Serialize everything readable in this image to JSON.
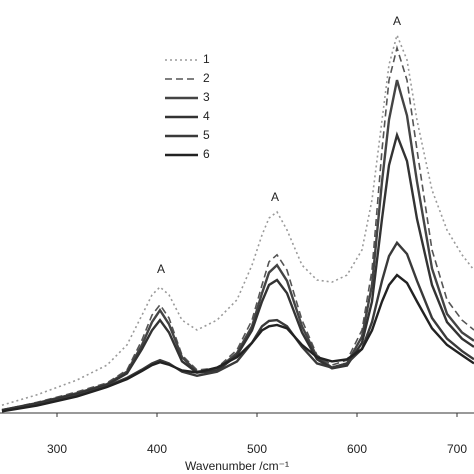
{
  "chart_data": {
    "type": "line",
    "x_label": "Wavenumber /cm⁻¹",
    "x": [
      245,
      280,
      320,
      350,
      370,
      385,
      395,
      403,
      412,
      425,
      440,
      460,
      480,
      495,
      505,
      512,
      520,
      530,
      545,
      560,
      575,
      590,
      605,
      615,
      625,
      632,
      640,
      650,
      660,
      675,
      690,
      705,
      717
    ],
    "xlim": [
      243,
      717
    ],
    "xticks": [
      300,
      400,
      500,
      600,
      700
    ],
    "ylim": [
      0,
      100
    ],
    "annotations": [
      "A",
      "A",
      "A"
    ],
    "series": [
      {
        "name": "1",
        "color": "#9a9a9a",
        "style": "dotted",
        "values": [
          1.9,
          4.4,
          8.0,
          11.6,
          16.5,
          23.7,
          28.6,
          30.5,
          28.6,
          22.5,
          20.1,
          22.5,
          27.4,
          35.8,
          43.1,
          47.2,
          48.7,
          44.3,
          35.8,
          32.2,
          31.7,
          33.4,
          39.5,
          51.6,
          70.9,
          84.3,
          91.5,
          85.5,
          70.9,
          54.0,
          44.3,
          38.3,
          34.6
        ]
      },
      {
        "name": "2",
        "color": "#555555",
        "style": "dashed",
        "values": [
          0.7,
          2.6,
          5.1,
          7.3,
          10.4,
          17.7,
          23.7,
          26.2,
          23.0,
          14.0,
          10.4,
          10.9,
          15.3,
          22.5,
          31.0,
          36.6,
          38.3,
          34.6,
          22.5,
          14.0,
          11.6,
          12.8,
          20.1,
          34.6,
          63.7,
          80.6,
          88.4,
          80.6,
          63.7,
          39.5,
          27.4,
          22.5,
          20.1
        ]
      },
      {
        "name": "3",
        "color": "#444444",
        "style": "solid",
        "values": [
          0.7,
          2.4,
          4.8,
          7.0,
          10.0,
          16.5,
          22.0,
          24.9,
          21.5,
          13.5,
          10.0,
          10.5,
          14.5,
          21.0,
          29.0,
          34.0,
          35.8,
          32.0,
          21.0,
          13.5,
          11.0,
          12.0,
          18.5,
          31.0,
          56.0,
          71.0,
          80.6,
          72.0,
          56.0,
          35.0,
          24.0,
          19.5,
          17.5
        ]
      },
      {
        "name": "4",
        "color": "#333333",
        "style": "solid",
        "values": [
          0.7,
          2.3,
          4.6,
          6.8,
          9.6,
          15.5,
          20.0,
          22.5,
          19.5,
          12.5,
          9.8,
          10.2,
          14.0,
          20.0,
          27.0,
          31.0,
          32.2,
          29.0,
          19.5,
          13.0,
          10.8,
          11.5,
          17.0,
          27.0,
          47.0,
          60.0,
          67.3,
          61.0,
          47.0,
          31.0,
          22.0,
          18.0,
          16.0
        ]
      },
      {
        "name": "5",
        "color": "#3a3a3a",
        "style": "solid",
        "values": [
          0.5,
          2.0,
          4.2,
          6.5,
          8.5,
          10.5,
          12.0,
          12.8,
          12.0,
          10.0,
          9.0,
          10.0,
          12.5,
          17.0,
          21.0,
          22.3,
          22.5,
          21.0,
          16.0,
          12.0,
          11.0,
          12.0,
          15.5,
          22.0,
          32.0,
          38.0,
          41.2,
          38.5,
          32.0,
          23.0,
          18.0,
          15.0,
          13.0
        ]
      },
      {
        "name": "6",
        "color": "#222222",
        "style": "solid",
        "values": [
          0.4,
          1.8,
          4.0,
          6.3,
          8.2,
          10.2,
          11.6,
          12.3,
          11.7,
          10.3,
          9.8,
          11.0,
          13.5,
          17.0,
          20.0,
          21.0,
          21.3,
          20.5,
          16.5,
          13.5,
          12.5,
          13.0,
          15.5,
          20.0,
          27.0,
          31.0,
          33.4,
          31.5,
          27.0,
          20.5,
          16.5,
          14.0,
          12.0
        ]
      }
    ]
  }
}
